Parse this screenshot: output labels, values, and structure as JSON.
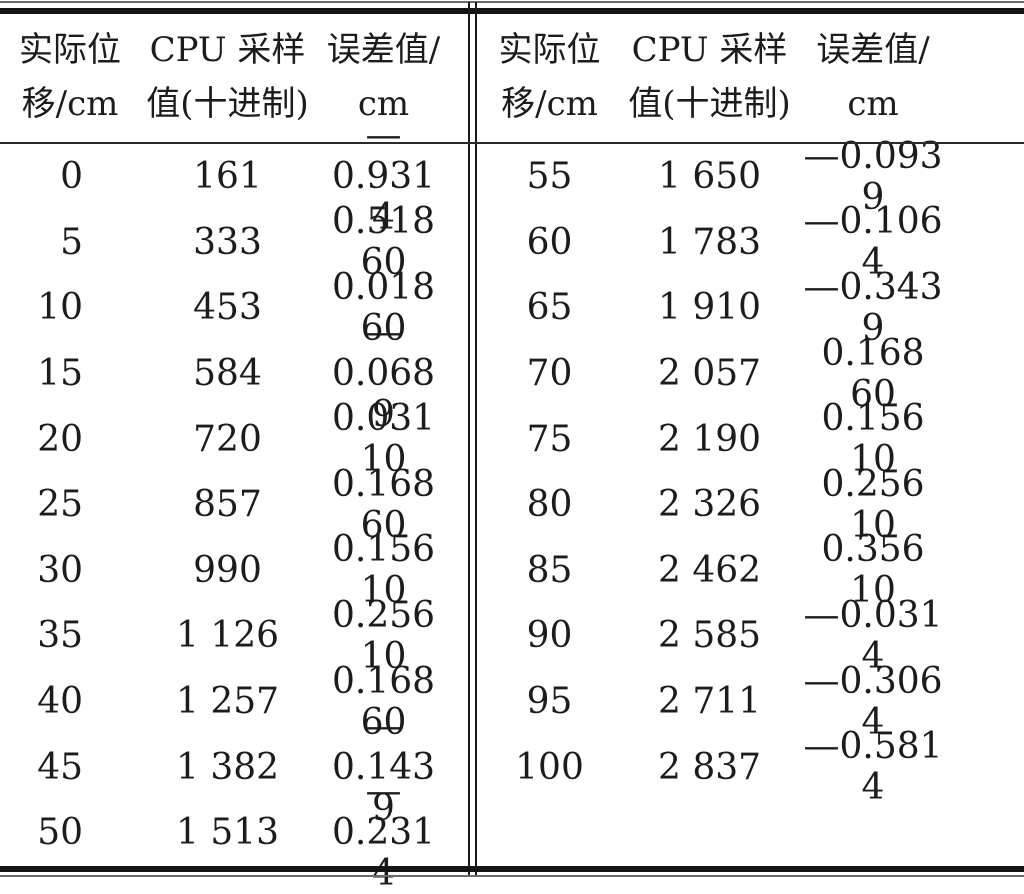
{
  "table": {
    "header": {
      "col1_line1": "实际位",
      "col1_line2": "移/cm",
      "col2_line1": "CPU 采样",
      "col2_line2": "值(十进制)",
      "col3_line1": "误差值/",
      "col3_line2": "cm"
    },
    "left_rows": [
      [
        "0",
        "161",
        "—0.931 4"
      ],
      [
        "5",
        "333",
        "0.518 60"
      ],
      [
        "10",
        "453",
        "0.018 60"
      ],
      [
        "15",
        "584",
        "—0.068 9"
      ],
      [
        "20",
        "720",
        "0.031 10"
      ],
      [
        "25",
        "857",
        "0.168 60"
      ],
      [
        "30",
        "990",
        "0.156 10"
      ],
      [
        "35",
        "1 126",
        "0.256 10"
      ],
      [
        "40",
        "1 257",
        "0.168 60"
      ],
      [
        "45",
        "1 382",
        "—0.143 9"
      ],
      [
        "50",
        "1 513",
        "—0.231 4"
      ]
    ],
    "right_rows": [
      [
        "55",
        "1 650",
        "—0.093 9"
      ],
      [
        "60",
        "1 783",
        "—0.106 4"
      ],
      [
        "65",
        "1 910",
        "—0.343 9"
      ],
      [
        "70",
        "2 057",
        "0.168 60"
      ],
      [
        "75",
        "2 190",
        "0.156 10"
      ],
      [
        "80",
        "2 326",
        "0.256 10"
      ],
      [
        "85",
        "2 462",
        "0.356 10"
      ],
      [
        "90",
        "2 585",
        "—0.031 4"
      ],
      [
        "95",
        "2 711",
        "—0.306 4"
      ],
      [
        "100",
        "2 837",
        "—0.581 4"
      ]
    ]
  },
  "chart_data": {
    "type": "table",
    "columns": [
      "实际位移/cm",
      "CPU采样值(十进制)",
      "误差值/cm"
    ],
    "displacement_cm": [
      0,
      5,
      10,
      15,
      20,
      25,
      30,
      35,
      40,
      45,
      50,
      55,
      60,
      65,
      70,
      75,
      80,
      85,
      90,
      95,
      100
    ],
    "cpu_sample_decimal": [
      161,
      333,
      453,
      584,
      720,
      857,
      990,
      1126,
      1257,
      1382,
      1513,
      1650,
      1783,
      1910,
      2057,
      2190,
      2326,
      2462,
      2585,
      2711,
      2837
    ],
    "error_cm": [
      -0.9314,
      0.5186,
      0.0186,
      -0.0689,
      0.0311,
      0.1686,
      0.1561,
      0.2561,
      0.1686,
      -0.1439,
      -0.2314,
      -0.0939,
      -0.1064,
      -0.3439,
      0.1686,
      0.1561,
      0.2561,
      0.3561,
      -0.0314,
      -0.3064,
      -0.5814
    ],
    "layout": "two column-groups side by side separated by double vertical rule"
  },
  "colors": {
    "text": "#1c1c1c",
    "thick_rule": "#141414",
    "thin_rule": "#6a6a6a",
    "background": "#ffffff"
  }
}
